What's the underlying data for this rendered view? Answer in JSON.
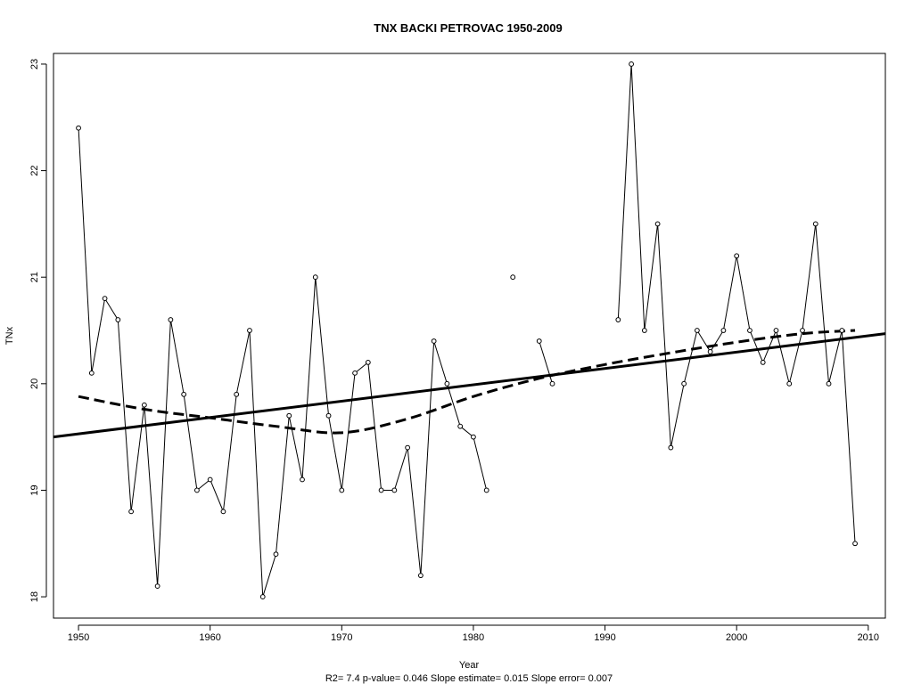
{
  "chart_data": {
    "type": "line",
    "title": "TNX   BACKI PETROVAC 1950-2009",
    "xlabel": "Year",
    "ylabel": "TNx",
    "footer": "R2= 7.4  p-value= 0.046  Slope estimate= 0.015  Slope error= 0.007",
    "xlim": [
      1948.1,
      2011.3
    ],
    "ylim": [
      17.8,
      23.1
    ],
    "x_ticks": [
      1950,
      1960,
      1970,
      1980,
      1990,
      2000,
      2010
    ],
    "y_ticks": [
      18,
      19,
      20,
      21,
      22,
      23
    ],
    "grid": false,
    "series": [
      {
        "style": "thin-line-with-open-circles",
        "x": [
          1950,
          1951,
          1952,
          1953,
          1954,
          1955,
          1956,
          1957,
          1958,
          1959,
          1960,
          1961,
          1962,
          1963,
          1964,
          1965,
          1966,
          1967,
          1968,
          1969,
          1970,
          1971,
          1972,
          1973,
          1974,
          1975,
          1976,
          1977,
          1978,
          1979,
          1980,
          1981,
          1982,
          1983,
          1984,
          1985,
          1986,
          1987,
          1988,
          1989,
          1990,
          1991,
          1992,
          1993,
          1994,
          1995,
          1996,
          1997,
          1998,
          1999,
          2000,
          2001,
          2002,
          2003,
          2004,
          2005,
          2006,
          2007,
          2008,
          2009
        ],
        "y": [
          22.4,
          20.1,
          20.8,
          20.6,
          18.8,
          19.8,
          18.1,
          20.6,
          19.9,
          19.0,
          19.1,
          18.8,
          19.9,
          20.5,
          18.0,
          18.4,
          19.7,
          19.1,
          21.0,
          19.7,
          19.0,
          20.1,
          20.2,
          19.0,
          19.0,
          19.4,
          18.2,
          20.4,
          20.0,
          19.6,
          19.5,
          19.0,
          null,
          21.0,
          null,
          20.4,
          20.0,
          null,
          null,
          null,
          null,
          20.6,
          23.0,
          20.5,
          21.5,
          19.4,
          20.0,
          20.5,
          20.3,
          20.5,
          21.2,
          20.5,
          20.2,
          20.5,
          20.0,
          20.5,
          21.5,
          20.0,
          20.5,
          18.5
        ]
      },
      {
        "style": "linear-trend",
        "x": [
          1948.1,
          2011.3
        ],
        "y": [
          19.5,
          20.47
        ]
      },
      {
        "style": "dashed-smooth",
        "x": [
          1950,
          1955,
          1960,
          1965,
          1970,
          1975,
          1980,
          1985,
          1990,
          1995,
          2000,
          2005,
          2009
        ],
        "y": [
          19.88,
          19.76,
          19.68,
          19.6,
          19.54,
          19.67,
          19.88,
          20.05,
          20.18,
          20.29,
          20.39,
          20.47,
          20.5
        ]
      }
    ]
  }
}
